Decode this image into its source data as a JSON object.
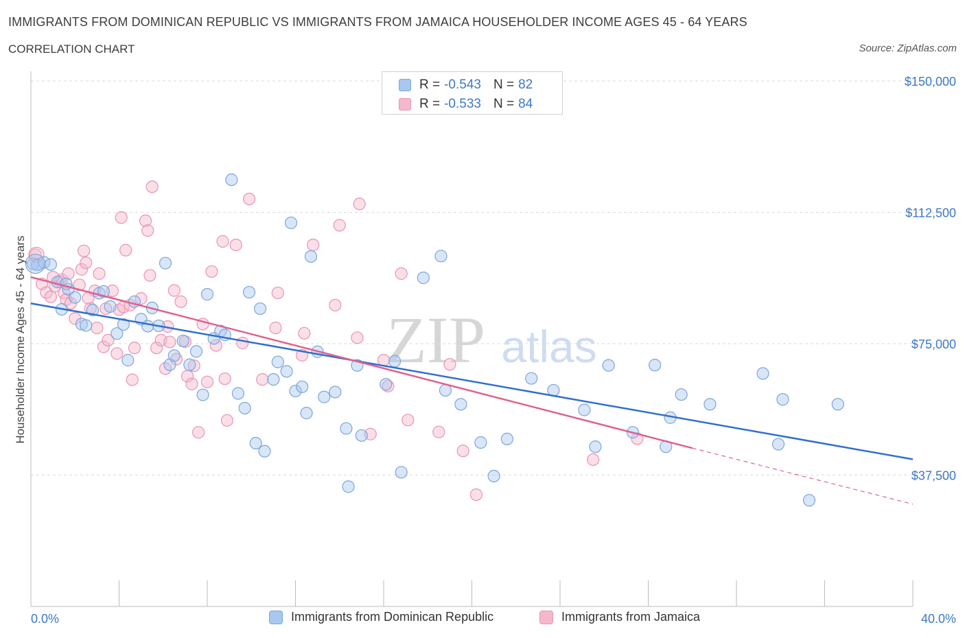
{
  "header": {
    "title": "IMMIGRANTS FROM DOMINICAN REPUBLIC VS IMMIGRANTS FROM JAMAICA HOUSEHOLDER INCOME AGES 45 - 64 YEARS",
    "subtitle": "CORRELATION CHART",
    "source": "Source: ZipAtlas.com"
  },
  "watermark": {
    "zip": "ZIP",
    "atlas": "atlas"
  },
  "legend": {
    "r_key": "R =",
    "n_key": "N =",
    "rows": [
      {
        "r": "-0.543",
        "n": "82",
        "color": "#a8c8f0"
      },
      {
        "r": "-0.533",
        "n": "84",
        "color": "#f5b8cb"
      }
    ]
  },
  "bottom_legend": [
    {
      "label": "Immigrants from Dominican Republic",
      "color": "#a8c8f0"
    },
    {
      "label": "Immigrants from Jamaica",
      "color": "#f5b8cb"
    }
  ],
  "colors": {
    "blue_fill": "#a8c8f0",
    "blue_stroke": "#7aa6dc",
    "blue_line": "#2f6fcf",
    "pink_fill": "#f5b8cb",
    "pink_stroke": "#e994b0",
    "pink_line": "#e0608e",
    "grid": "#d9d9d9",
    "axis_label": "#3b78c9"
  },
  "chart_data": {
    "type": "scatter",
    "title": "IMMIGRANTS FROM DOMINICAN REPUBLIC VS IMMIGRANTS FROM JAMAICA HOUSEHOLDER INCOME AGES 45 - 64 YEARS",
    "xlabel": "",
    "ylabel": "Householder Income Ages 45 - 64 years",
    "xlim": [
      0,
      40
    ],
    "ylim": [
      0,
      150000
    ],
    "x_tick_labels": [
      "0.0%",
      "40.0%"
    ],
    "y_ticks": [
      37500,
      75000,
      112500,
      150000
    ],
    "y_tick_labels": [
      "$37,500",
      "$75,000",
      "$112,500",
      "$150,000"
    ],
    "grid": true,
    "series": [
      {
        "name": "Immigrants from Dominican Republic",
        "r": -0.543,
        "n": 82,
        "trend": {
          "x": [
            0,
            40
          ],
          "y": [
            86500,
            42000
          ]
        },
        "points": [
          [
            0.1,
            97800
          ],
          [
            0.3,
            97500
          ],
          [
            0.6,
            98200
          ],
          [
            0.9,
            97600
          ],
          [
            1.2,
            92600
          ],
          [
            1.4,
            84800
          ],
          [
            1.7,
            90500
          ],
          [
            2.0,
            88200
          ],
          [
            2.3,
            80600
          ],
          [
            2.5,
            80200
          ],
          [
            2.8,
            84600
          ],
          [
            3.1,
            89400
          ],
          [
            3.3,
            89900
          ],
          [
            3.6,
            85600
          ],
          [
            3.9,
            77900
          ],
          [
            4.2,
            80500
          ],
          [
            4.4,
            70300
          ],
          [
            4.7,
            87000
          ],
          [
            5.0,
            82000
          ],
          [
            5.3,
            80000
          ],
          [
            5.5,
            85200
          ],
          [
            5.8,
            80100
          ],
          [
            6.1,
            98000
          ],
          [
            6.3,
            69000
          ],
          [
            6.5,
            71600
          ],
          [
            6.9,
            75800
          ],
          [
            7.2,
            69000
          ],
          [
            7.5,
            72800
          ],
          [
            7.8,
            60400
          ],
          [
            8.0,
            89100
          ],
          [
            8.3,
            76500
          ],
          [
            8.6,
            78600
          ],
          [
            8.8,
            77500
          ],
          [
            9.1,
            121800
          ],
          [
            9.4,
            60800
          ],
          [
            9.7,
            56600
          ],
          [
            9.9,
            89700
          ],
          [
            10.2,
            46600
          ],
          [
            10.4,
            85000
          ],
          [
            10.6,
            44300
          ],
          [
            11.0,
            64800
          ],
          [
            11.2,
            69800
          ],
          [
            11.6,
            67100
          ],
          [
            11.8,
            109500
          ],
          [
            12.0,
            61500
          ],
          [
            12.3,
            62700
          ],
          [
            12.5,
            55200
          ],
          [
            12.7,
            99900
          ],
          [
            13.0,
            72700
          ],
          [
            13.3,
            59800
          ],
          [
            13.8,
            61200
          ],
          [
            14.3,
            50800
          ],
          [
            14.4,
            34200
          ],
          [
            14.8,
            68800
          ],
          [
            15.0,
            48800
          ],
          [
            16.1,
            63400
          ],
          [
            16.5,
            70000
          ],
          [
            16.8,
            38300
          ],
          [
            17.8,
            93800
          ],
          [
            18.6,
            100000
          ],
          [
            18.8,
            61700
          ],
          [
            19.5,
            57700
          ],
          [
            20.4,
            46800
          ],
          [
            21.0,
            37200
          ],
          [
            21.6,
            47800
          ],
          [
            22.7,
            65100
          ],
          [
            23.7,
            61700
          ],
          [
            25.1,
            56100
          ],
          [
            25.6,
            45600
          ],
          [
            26.2,
            68800
          ],
          [
            27.3,
            49700
          ],
          [
            28.3,
            68900
          ],
          [
            28.8,
            45600
          ],
          [
            29.0,
            53900
          ],
          [
            29.5,
            60500
          ],
          [
            30.8,
            57700
          ],
          [
            33.2,
            66500
          ],
          [
            33.9,
            46300
          ],
          [
            34.1,
            59100
          ],
          [
            35.3,
            30300
          ],
          [
            36.6,
            57700
          ],
          [
            1.6,
            92100
          ]
        ]
      },
      {
        "name": "Immigrants from Jamaica",
        "r": -0.533,
        "n": 84,
        "trend": {
          "x": [
            0,
            30
          ],
          "y": [
            94000,
            45200
          ]
        },
        "trend_dashed": {
          "x": [
            30,
            40
          ],
          "y": [
            45200,
            29200
          ]
        },
        "points": [
          [
            0.2,
            100400
          ],
          [
            0.4,
            97800
          ],
          [
            0.5,
            92100
          ],
          [
            0.7,
            89600
          ],
          [
            0.9,
            88400
          ],
          [
            1.1,
            91400
          ],
          [
            1.3,
            92800
          ],
          [
            1.4,
            93300
          ],
          [
            1.5,
            89500
          ],
          [
            1.6,
            87600
          ],
          [
            1.7,
            95000
          ],
          [
            1.8,
            86500
          ],
          [
            2.0,
            82200
          ],
          [
            2.2,
            91800
          ],
          [
            2.3,
            96200
          ],
          [
            2.4,
            101500
          ],
          [
            2.5,
            98100
          ],
          [
            2.7,
            85100
          ],
          [
            2.9,
            90100
          ],
          [
            3.0,
            79500
          ],
          [
            3.1,
            95000
          ],
          [
            3.3,
            74100
          ],
          [
            3.4,
            85000
          ],
          [
            3.5,
            76000
          ],
          [
            3.7,
            90100
          ],
          [
            3.9,
            72200
          ],
          [
            4.0,
            84700
          ],
          [
            4.1,
            111000
          ],
          [
            4.2,
            85500
          ],
          [
            4.3,
            101700
          ],
          [
            4.5,
            86000
          ],
          [
            4.6,
            64700
          ],
          [
            4.7,
            73800
          ],
          [
            5.0,
            87900
          ],
          [
            5.2,
            110100
          ],
          [
            5.3,
            107300
          ],
          [
            5.4,
            94500
          ],
          [
            5.5,
            119800
          ],
          [
            5.7,
            73800
          ],
          [
            5.9,
            76000
          ],
          [
            6.1,
            67900
          ],
          [
            6.2,
            79900
          ],
          [
            6.3,
            75500
          ],
          [
            6.5,
            90200
          ],
          [
            6.6,
            70600
          ],
          [
            6.8,
            87000
          ],
          [
            7.0,
            75600
          ],
          [
            7.1,
            65700
          ],
          [
            7.3,
            63500
          ],
          [
            7.4,
            68700
          ],
          [
            7.6,
            49700
          ],
          [
            7.8,
            80600
          ],
          [
            8.0,
            64100
          ],
          [
            8.2,
            95600
          ],
          [
            8.4,
            74500
          ],
          [
            8.7,
            104200
          ],
          [
            8.8,
            65000
          ],
          [
            8.9,
            53100
          ],
          [
            9.3,
            103200
          ],
          [
            9.6,
            75200
          ],
          [
            9.9,
            116300
          ],
          [
            10.5,
            64800
          ],
          [
            11.1,
            79500
          ],
          [
            11.2,
            89500
          ],
          [
            12.3,
            71700
          ],
          [
            12.4,
            78000
          ],
          [
            12.8,
            103200
          ],
          [
            13.8,
            86000
          ],
          [
            14.0,
            108800
          ],
          [
            14.8,
            76700
          ],
          [
            14.9,
            114900
          ],
          [
            15.4,
            49200
          ],
          [
            16.0,
            70300
          ],
          [
            16.2,
            62900
          ],
          [
            16.8,
            95000
          ],
          [
            17.1,
            53200
          ],
          [
            18.5,
            49800
          ],
          [
            19.0,
            69100
          ],
          [
            19.6,
            44400
          ],
          [
            20.2,
            31900
          ],
          [
            25.5,
            41900
          ],
          [
            27.5,
            47900
          ],
          [
            1.0,
            94000
          ],
          [
            2.6,
            88000
          ]
        ]
      }
    ]
  }
}
